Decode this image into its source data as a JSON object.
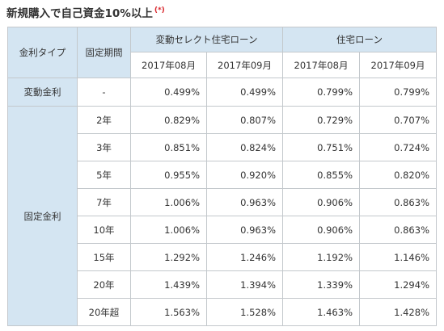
{
  "heading": {
    "title": "新規購入で自己資金10%以上",
    "note_mark": "(*)"
  },
  "table": {
    "header": {
      "rate_type": "金利タイプ",
      "fixed_period": "固定期間",
      "group_select": "変動セレクト住宅ローン",
      "group_standard": "住宅ローン",
      "month_aug": "2017年08月",
      "month_sep": "2017年09月"
    },
    "variable_row": {
      "label": "変動金利",
      "period": "-",
      "values": [
        "0.499%",
        "0.499%",
        "0.799%",
        "0.799%"
      ]
    },
    "fixed_label": "固定金利",
    "fixed_rows": [
      {
        "period": "2年",
        "values": [
          "0.829%",
          "0.807%",
          "0.729%",
          "0.707%"
        ]
      },
      {
        "period": "3年",
        "values": [
          "0.851%",
          "0.824%",
          "0.751%",
          "0.724%"
        ]
      },
      {
        "period": "5年",
        "values": [
          "0.955%",
          "0.920%",
          "0.855%",
          "0.820%"
        ]
      },
      {
        "period": "7年",
        "values": [
          "1.006%",
          "0.963%",
          "0.906%",
          "0.863%"
        ]
      },
      {
        "period": "10年",
        "values": [
          "1.006%",
          "0.963%",
          "0.906%",
          "0.863%"
        ]
      },
      {
        "period": "15年",
        "values": [
          "1.292%",
          "1.246%",
          "1.192%",
          "1.146%"
        ]
      },
      {
        "period": "20年",
        "values": [
          "1.439%",
          "1.394%",
          "1.339%",
          "1.294%"
        ]
      },
      {
        "period": "20年超",
        "values": [
          "1.563%",
          "1.528%",
          "1.463%",
          "1.428%"
        ]
      }
    ]
  },
  "colors": {
    "header_blue": "#d4e5f2",
    "border": "#c3c8cc",
    "note_red": "#d9262c"
  }
}
